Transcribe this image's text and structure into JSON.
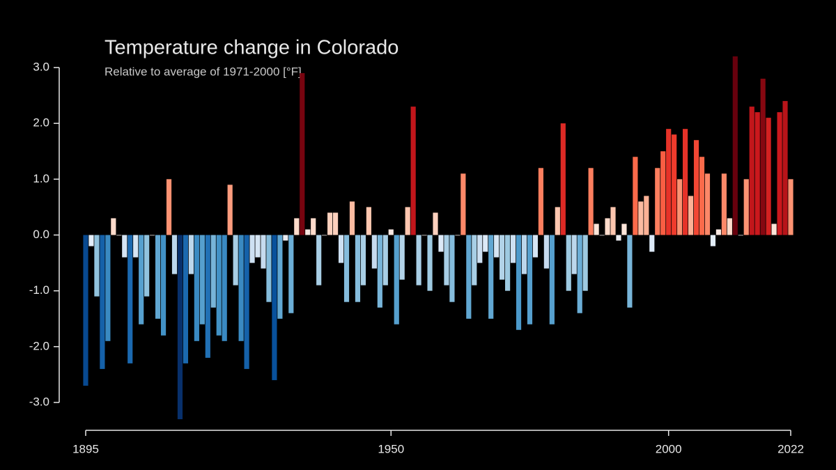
{
  "chart_data": {
    "type": "bar",
    "title": "Temperature change in Colorado",
    "subtitle": "Relative to average of 1971-2000  [°F]",
    "x": [
      1895,
      1896,
      1897,
      1898,
      1899,
      1900,
      1901,
      1902,
      1903,
      1904,
      1905,
      1906,
      1907,
      1908,
      1909,
      1910,
      1911,
      1912,
      1913,
      1914,
      1915,
      1916,
      1917,
      1918,
      1919,
      1920,
      1921,
      1922,
      1923,
      1924,
      1925,
      1926,
      1927,
      1928,
      1929,
      1930,
      1931,
      1932,
      1933,
      1934,
      1935,
      1936,
      1937,
      1938,
      1939,
      1940,
      1941,
      1942,
      1943,
      1944,
      1945,
      1946,
      1947,
      1948,
      1949,
      1950,
      1951,
      1952,
      1953,
      1954,
      1955,
      1956,
      1957,
      1958,
      1959,
      1960,
      1961,
      1962,
      1963,
      1964,
      1965,
      1966,
      1967,
      1968,
      1969,
      1970,
      1971,
      1972,
      1973,
      1974,
      1975,
      1976,
      1977,
      1978,
      1979,
      1980,
      1981,
      1982,
      1983,
      1984,
      1985,
      1986,
      1987,
      1988,
      1989,
      1990,
      1991,
      1992,
      1993,
      1994,
      1995,
      1996,
      1997,
      1998,
      1999,
      2000,
      2001,
      2002,
      2003,
      2004,
      2005,
      2006,
      2007,
      2008,
      2009,
      2010,
      2011,
      2012,
      2013,
      2014,
      2015,
      2016,
      2017,
      2018,
      2019,
      2020,
      2021,
      2022
    ],
    "values": [
      -2.7,
      -0.2,
      -1.1,
      -2.4,
      -1.9,
      0.3,
      0.0,
      -0.4,
      -2.3,
      -0.4,
      -1.6,
      -1.1,
      0.0,
      -1.5,
      -1.8,
      1.0,
      -0.7,
      -3.3,
      -2.3,
      -0.7,
      -1.9,
      -1.6,
      -2.2,
      -1.3,
      -1.8,
      -1.9,
      0.9,
      -0.9,
      -1.9,
      -2.4,
      -0.5,
      -0.4,
      -0.6,
      -1.2,
      -2.6,
      -1.5,
      -0.1,
      -1.4,
      0.3,
      2.9,
      0.1,
      0.3,
      -0.9,
      0.0,
      0.4,
      0.4,
      -0.5,
      -1.2,
      0.6,
      -1.2,
      -0.9,
      0.5,
      -0.6,
      -1.3,
      -0.9,
      0.1,
      -1.6,
      -0.8,
      0.5,
      2.3,
      -0.9,
      0.0,
      -1.0,
      0.4,
      -0.3,
      -0.9,
      -1.2,
      0.0,
      1.1,
      -1.5,
      -0.9,
      -0.5,
      -0.3,
      -1.5,
      -0.4,
      -0.8,
      -1.0,
      -0.5,
      -1.7,
      -0.7,
      -1.6,
      -0.4,
      1.2,
      -0.6,
      -1.6,
      0.5,
      2.0,
      -1.0,
      -0.7,
      -1.4,
      -1.0,
      1.2,
      0.2,
      0.0,
      0.3,
      0.5,
      -0.1,
      0.2,
      -1.3,
      1.4,
      0.6,
      0.7,
      -0.3,
      1.2,
      1.5,
      1.9,
      1.8,
      1.0,
      1.9,
      0.7,
      1.7,
      1.4,
      1.1,
      -0.2,
      0.1,
      1.1,
      0.3,
      3.2,
      0.0,
      1.0,
      2.3,
      2.2,
      2.8,
      2.1,
      0.2,
      2.2,
      2.4,
      1.0
    ],
    "xlim": [
      1895,
      2022
    ],
    "xticks": [
      1895,
      1950,
      2000,
      2022
    ],
    "ylim": [
      -3,
      3
    ],
    "yticks": [
      {
        "value": 3,
        "label": "3.0"
      },
      {
        "value": 2,
        "label": "2.0"
      },
      {
        "value": 1,
        "label": "1.0"
      },
      {
        "value": 0,
        "label": "0.0"
      },
      {
        "value": -1,
        "label": "-1.0"
      },
      {
        "value": -2,
        "label": "-2.0"
      },
      {
        "value": -3,
        "label": "-3.0"
      }
    ],
    "colormap": {
      "range": [
        -3,
        3
      ],
      "colors": [
        "#08306b",
        "#08519c",
        "#2171b5",
        "#4292c6",
        "#6baed6",
        "#9ecae1",
        "#c6dbef",
        "#e3eef9",
        "#fee5d9",
        "#fcbba1",
        "#fc9272",
        "#fb6a4a",
        "#ef3b2c",
        "#cb181d",
        "#a50f15",
        "#67000d"
      ]
    }
  }
}
